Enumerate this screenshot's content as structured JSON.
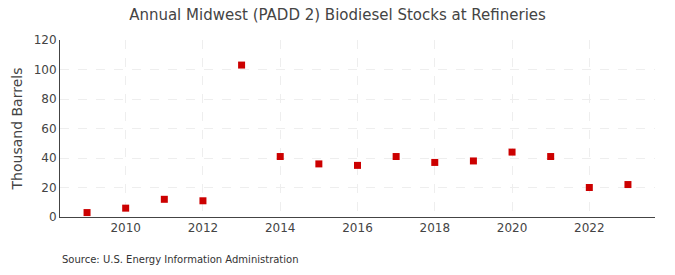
{
  "chart_data": {
    "type": "scatter",
    "title": "Annual Midwest (PADD 2) Biodiesel Stocks at Refineries",
    "ylabel": "Thousand Barrels",
    "annotations": [
      "Source: U.S. Energy Information Administration"
    ],
    "x": [
      2009,
      2010,
      2011,
      2012,
      2013,
      2014,
      2015,
      2016,
      2017,
      2018,
      2019,
      2020,
      2021,
      2022,
      2023
    ],
    "values": [
      3,
      6,
      12,
      11,
      103,
      41,
      36,
      35,
      41,
      37,
      38,
      44,
      41,
      20,
      22
    ],
    "color": "#cc0000",
    "marker": "square",
    "xlim": [
      2008.3,
      2023.7
    ],
    "xticks": [
      2010,
      2012,
      2014,
      2016,
      2018,
      2020,
      2022
    ],
    "ylim": [
      0,
      120
    ],
    "yticks": [
      0,
      20,
      40,
      60,
      80,
      100,
      120
    ],
    "grid": true
  }
}
